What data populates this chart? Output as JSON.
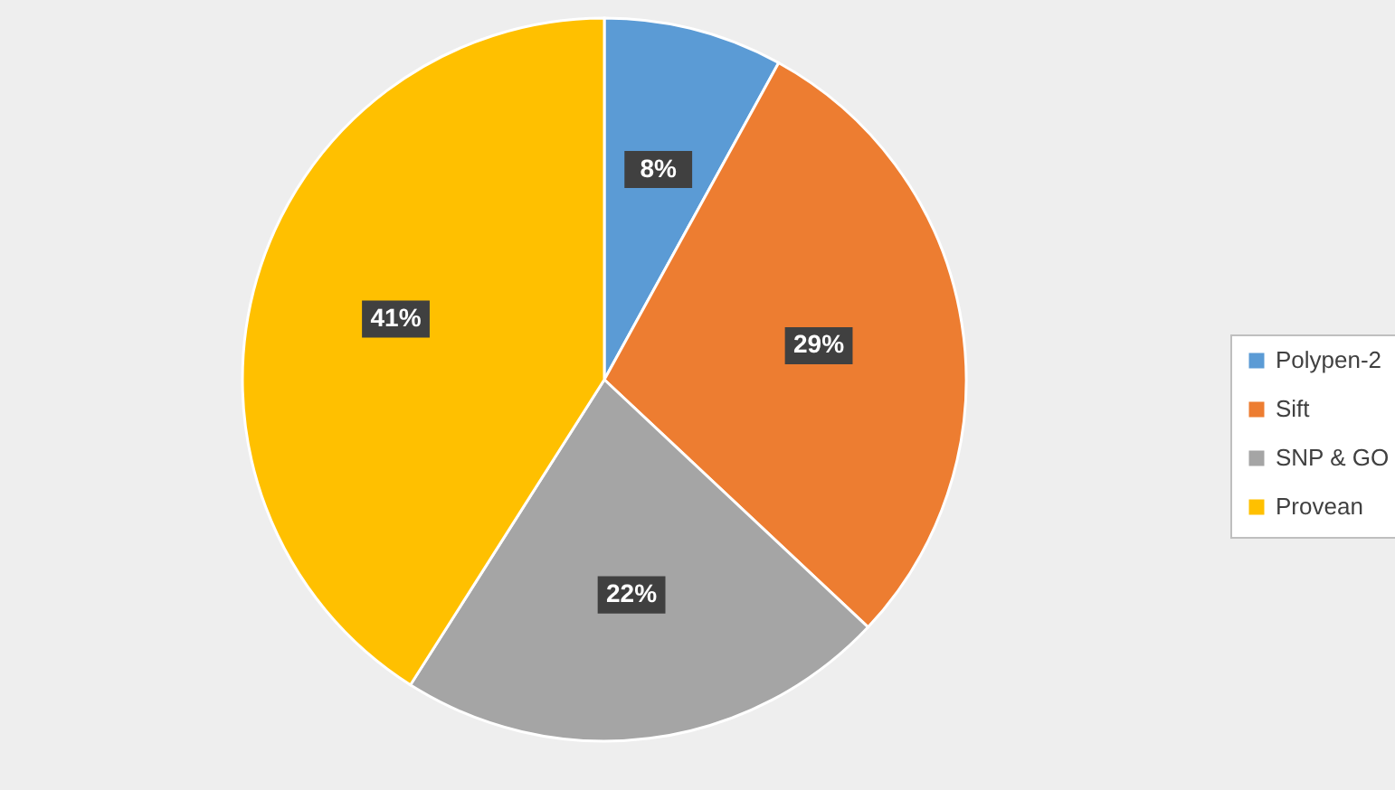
{
  "chart_data": {
    "type": "pie",
    "categories": [
      "Polypen-2",
      "Sift",
      "SNP & GO",
      "Provean"
    ],
    "values": [
      8,
      29,
      22,
      41
    ],
    "value_labels": [
      "8%",
      "29%",
      "22%",
      "41%"
    ],
    "colors": [
      "#5b9bd5",
      "#ed7d31",
      "#a5a5a5",
      "#ffc000"
    ],
    "legend": "right"
  }
}
